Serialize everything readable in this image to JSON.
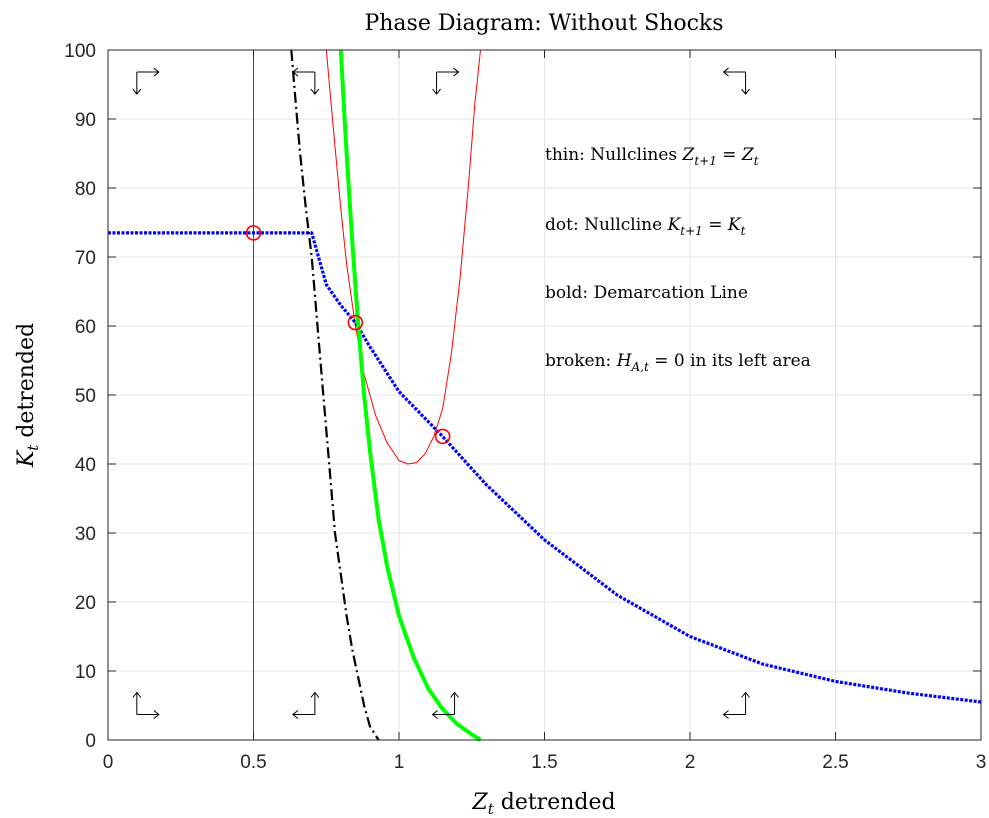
{
  "chart_data": {
    "type": "line",
    "title": "Phase Diagram: Without Shocks",
    "xlabel": {
      "main": "Z",
      "sub": "t",
      "suffix": " detrended"
    },
    "ylabel": {
      "main": "K",
      "sub": "t",
      "suffix": " detrended"
    },
    "xlim": [
      0,
      3
    ],
    "ylim": [
      0,
      100
    ],
    "xticks": [
      0,
      0.5,
      1,
      1.5,
      2,
      2.5,
      3
    ],
    "yticks": [
      0,
      10,
      20,
      30,
      40,
      50,
      60,
      70,
      80,
      90,
      100
    ],
    "xtick_labels": [
      "0",
      "0.5",
      "1",
      "1.5",
      "2",
      "2.5",
      "3"
    ],
    "ytick_labels": [
      "0",
      "10",
      "20",
      "30",
      "40",
      "50",
      "60",
      "70",
      "80",
      "90",
      "100"
    ],
    "grid": true,
    "annotations": [
      {
        "text": "thin: Nullclines ",
        "math_main": "Z",
        "math_sub": "t+1",
        "math_eq": " = ",
        "math_rhs": "Z",
        "math_rhs_sub": "t",
        "tail": ""
      },
      {
        "text": "dot: Nullcline ",
        "math_main": "K",
        "math_sub": "t+1",
        "math_eq": " = ",
        "math_rhs": "K",
        "math_rhs_sub": "t",
        "tail": ""
      },
      {
        "text": "bold: Demarcation Line",
        "math_main": "",
        "math_sub": "",
        "math_eq": "",
        "math_rhs": "",
        "math_rhs_sub": "",
        "tail": ""
      },
      {
        "text": "broken: ",
        "math_main": "H",
        "math_sub": "A,t",
        "math_eq": " = ",
        "math_rhs": "0",
        "math_rhs_sub": "",
        "tail": " in its left area"
      }
    ],
    "series": [
      {
        "style": "thin",
        "color": "#ff0000",
        "x": [
          0.5,
          0.5
        ],
        "y": [
          0,
          100
        ]
      },
      {
        "style": "thin",
        "color": "#ff0000",
        "x": [
          0.75,
          0.78,
          0.8,
          0.82,
          0.85,
          0.88,
          0.92,
          0.96,
          1.0,
          1.03,
          1.06,
          1.09,
          1.12,
          1.15,
          1.18,
          1.21,
          1.24,
          1.26,
          1.28
        ],
        "y": [
          100,
          86,
          77,
          69,
          60,
          53,
          47,
          43,
          40.5,
          40.0,
          40.2,
          41.5,
          44,
          48,
          56,
          67,
          81,
          92,
          100
        ]
      },
      {
        "style": "dot",
        "color": "#0000ff",
        "x": [
          0,
          0.5,
          0.7,
          0.75,
          0.8,
          0.85,
          0.9,
          1.0,
          1.15,
          1.3,
          1.5,
          1.75,
          2.0,
          2.25,
          2.5,
          2.75,
          3.0
        ],
        "y": [
          73.5,
          73.5,
          73.5,
          66,
          63,
          60.5,
          57,
          50.5,
          44,
          37,
          29,
          21,
          15,
          11,
          8.5,
          6.8,
          5.5
        ]
      },
      {
        "style": "bold",
        "color": "#00ff00",
        "x": [
          0.8,
          0.82,
          0.84,
          0.86,
          0.88,
          0.9,
          0.93,
          0.96,
          1.0,
          1.05,
          1.1,
          1.15,
          1.2,
          1.25,
          1.28
        ],
        "y": [
          100,
          85,
          72,
          60,
          50,
          42,
          32,
          25,
          18,
          12,
          7.5,
          4.5,
          2.3,
          0.8,
          0
        ]
      },
      {
        "style": "broken",
        "color": "#000000",
        "x": [
          0.63,
          0.64,
          0.65,
          0.66,
          0.68,
          0.7,
          0.72,
          0.74,
          0.76,
          0.78,
          0.8,
          0.82,
          0.84,
          0.86,
          0.88,
          0.9,
          0.93
        ],
        "y": [
          100,
          95,
          90,
          85,
          77,
          70,
          60,
          50,
          40,
          30,
          24,
          18,
          13,
          9,
          5,
          2,
          0
        ]
      }
    ],
    "markers": [
      {
        "x": 0.5,
        "y": 73.5,
        "color": "#ff0000"
      },
      {
        "x": 0.85,
        "y": 60.5,
        "color": "#ff0000"
      },
      {
        "x": 1.15,
        "y": 44,
        "color": "#ff0000"
      }
    ],
    "arrows": [
      {
        "x": 0.13,
        "y": 95.5,
        "v": "down",
        "h": "right"
      },
      {
        "x": 0.68,
        "y": 95.5,
        "v": "down",
        "h": "left"
      },
      {
        "x": 1.16,
        "y": 95.5,
        "v": "down",
        "h": "right"
      },
      {
        "x": 2.16,
        "y": 95.5,
        "v": "down",
        "h": "left"
      },
      {
        "x": 0.13,
        "y": 5,
        "v": "up",
        "h": "right"
      },
      {
        "x": 0.68,
        "y": 5,
        "v": "up",
        "h": "left"
      },
      {
        "x": 1.16,
        "y": 5,
        "v": "up",
        "h": "left"
      },
      {
        "x": 2.16,
        "y": 5,
        "v": "up",
        "h": "left"
      }
    ]
  }
}
